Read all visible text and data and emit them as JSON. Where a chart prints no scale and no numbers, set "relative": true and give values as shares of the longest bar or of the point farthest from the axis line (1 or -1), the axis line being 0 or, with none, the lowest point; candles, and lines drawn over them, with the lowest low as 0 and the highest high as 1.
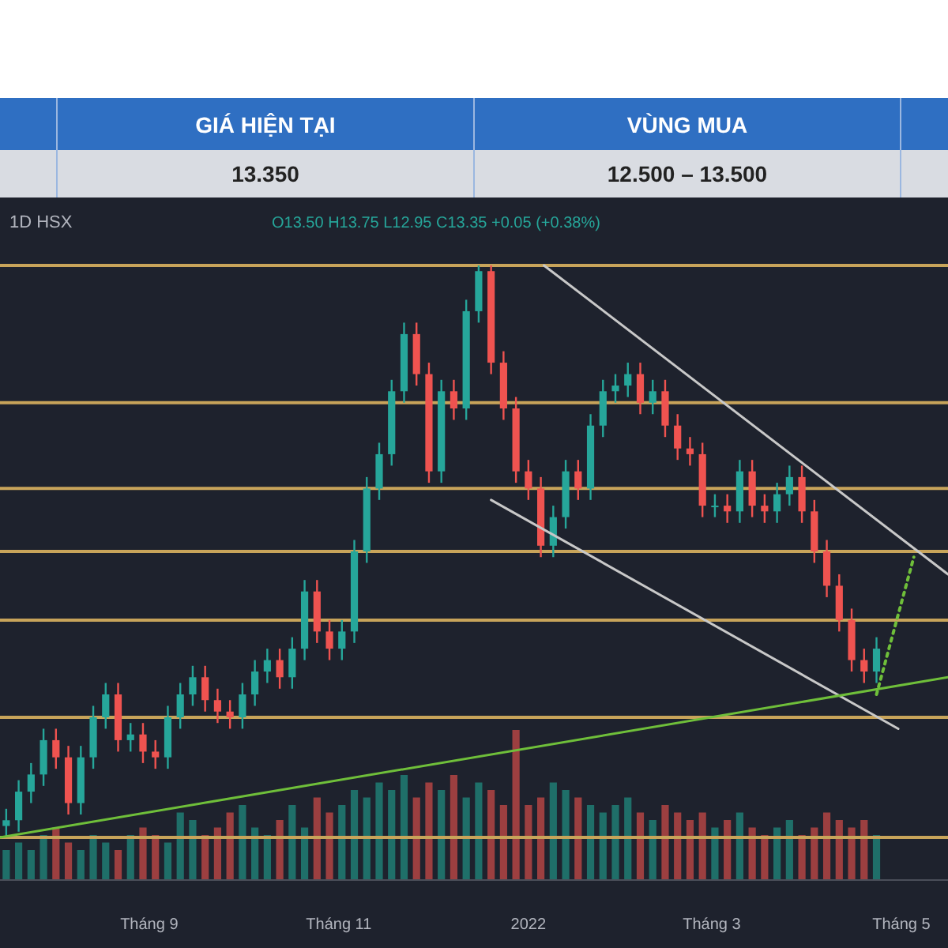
{
  "chart_data": [
    {
      "type": "candlestick",
      "relative": true,
      "tick_labels": "x",
      "annotations": [
        "GIÁ HIỆN TẠI",
        "VÙNG MUA",
        "13.350",
        "12.500 – 13.500",
        "1D HSX",
        "O13.50 H13.75 L12.95 C13.35 +0.05 (+0.38%)"
      ],
      "x": [
        "2021-07-17",
        "2021-07-21",
        "2021-07-25",
        "2021-07-29",
        "2021-08-02",
        "2021-08-06",
        "2021-08-10",
        "2021-08-14",
        "2021-08-18",
        "2021-08-22",
        "2021-08-26",
        "2021-08-30",
        "2021-09-03",
        "2021-09-07",
        "2021-09-11",
        "2021-09-15",
        "2021-09-19",
        "2021-09-23",
        "2021-09-27",
        "2021-10-01",
        "2021-10-05",
        "2021-10-09",
        "2021-10-13",
        "2021-10-17",
        "2021-10-21",
        "2021-10-25",
        "2021-10-29",
        "2021-11-02",
        "2021-11-06",
        "2021-11-10",
        "2021-11-14",
        "2021-11-18",
        "2021-11-22",
        "2021-11-26",
        "2021-11-30",
        "2021-12-04",
        "2021-12-08",
        "2021-12-12",
        "2021-12-16",
        "2021-12-20",
        "2021-12-24",
        "2021-12-28",
        "2022-01-01",
        "2022-01-05",
        "2022-01-09",
        "2022-01-13",
        "2022-01-17",
        "2022-01-21",
        "2022-01-25",
        "2022-01-29",
        "2022-02-02",
        "2022-02-06",
        "2022-02-10",
        "2022-02-14",
        "2022-02-18",
        "2022-02-22",
        "2022-02-26",
        "2022-03-02",
        "2022-03-06",
        "2022-03-10",
        "2022-03-14",
        "2022-03-18",
        "2022-03-22",
        "2022-03-26",
        "2022-03-30",
        "2022-04-03",
        "2022-04-07",
        "2022-04-11",
        "2022-04-15",
        "2022-04-19",
        "2022-04-23"
      ],
      "xlim": [
        "2021-07-15",
        "2022-05-16"
      ],
      "xticks": [
        {
          "value": "2021-09-01",
          "label": "Tháng 9"
        },
        {
          "value": "2021-11-01",
          "label": "Tháng 11"
        },
        {
          "value": "2022-01-01",
          "label": "2022"
        },
        {
          "value": "2022-03-01",
          "label": "Tháng 3"
        },
        {
          "value": "2022-05-01",
          "label": "Tháng 5"
        }
      ],
      "ohlc": [
        [
          0.02,
          0.05,
          0,
          0.03
        ],
        [
          0.03,
          0.1,
          0.01,
          0.08
        ],
        [
          0.08,
          0.13,
          0.06,
          0.11
        ],
        [
          0.11,
          0.19,
          0.09,
          0.17
        ],
        [
          0.17,
          0.19,
          0.12,
          0.14
        ],
        [
          0.14,
          0.16,
          0.04,
          0.06
        ],
        [
          0.06,
          0.16,
          0.04,
          0.14
        ],
        [
          0.14,
          0.23,
          0.12,
          0.21
        ],
        [
          0.21,
          0.27,
          0.19,
          0.25
        ],
        [
          0.25,
          0.27,
          0.15,
          0.17
        ],
        [
          0.17,
          0.2,
          0.15,
          0.18
        ],
        [
          0.18,
          0.2,
          0.13,
          0.15
        ],
        [
          0.15,
          0.17,
          0.12,
          0.14
        ],
        [
          0.14,
          0.23,
          0.12,
          0.21
        ],
        [
          0.21,
          0.27,
          0.19,
          0.25
        ],
        [
          0.25,
          0.3,
          0.23,
          0.28
        ],
        [
          0.28,
          0.3,
          0.22,
          0.24
        ],
        [
          0.24,
          0.26,
          0.2,
          0.22
        ],
        [
          0.22,
          0.24,
          0.19,
          0.21
        ],
        [
          0.21,
          0.27,
          0.19,
          0.25
        ],
        [
          0.25,
          0.31,
          0.23,
          0.29
        ],
        [
          0.29,
          0.33,
          0.27,
          0.31
        ],
        [
          0.31,
          0.33,
          0.26,
          0.28
        ],
        [
          0.28,
          0.35,
          0.26,
          0.33
        ],
        [
          0.33,
          0.45,
          0.31,
          0.43
        ],
        [
          0.43,
          0.45,
          0.34,
          0.36
        ],
        [
          0.36,
          0.38,
          0.31,
          0.33
        ],
        [
          0.33,
          0.38,
          0.31,
          0.36
        ],
        [
          0.36,
          0.52,
          0.34,
          0.5
        ],
        [
          0.5,
          0.63,
          0.48,
          0.61
        ],
        [
          0.61,
          0.69,
          0.59,
          0.67
        ],
        [
          0.67,
          0.8,
          0.65,
          0.78
        ],
        [
          0.78,
          0.9,
          0.76,
          0.88
        ],
        [
          0.88,
          0.9,
          0.79,
          0.81
        ],
        [
          0.81,
          0.83,
          0.62,
          0.64
        ],
        [
          0.64,
          0.8,
          0.62,
          0.78
        ],
        [
          0.78,
          0.8,
          0.73,
          0.75
        ],
        [
          0.75,
          0.94,
          0.73,
          0.92
        ],
        [
          0.92,
          1,
          0.9,
          0.99
        ],
        [
          0.99,
          1,
          0.81,
          0.83
        ],
        [
          0.83,
          0.85,
          0.73,
          0.75
        ],
        [
          0.75,
          0.77,
          0.62,
          0.64
        ],
        [
          0.64,
          0.66,
          0.59,
          0.61
        ],
        [
          0.61,
          0.63,
          0.49,
          0.51
        ],
        [
          0.51,
          0.58,
          0.49,
          0.56
        ],
        [
          0.56,
          0.66,
          0.54,
          0.64
        ],
        [
          0.64,
          0.66,
          0.59,
          0.61
        ],
        [
          0.61,
          0.74,
          0.59,
          0.72
        ],
        [
          0.72,
          0.8,
          0.7,
          0.78
        ],
        [
          0.78,
          0.81,
          0.76,
          0.79
        ],
        [
          0.79,
          0.83,
          0.77,
          0.81
        ],
        [
          0.81,
          0.83,
          0.74,
          0.76
        ],
        [
          0.76,
          0.8,
          0.74,
          0.78
        ],
        [
          0.78,
          0.8,
          0.7,
          0.72
        ],
        [
          0.72,
          0.74,
          0.66,
          0.68
        ],
        [
          0.68,
          0.7,
          0.65,
          0.67
        ],
        [
          0.67,
          0.69,
          0.56,
          0.58
        ],
        [
          0.58,
          0.6,
          0.56,
          0.58
        ],
        [
          0.58,
          0.6,
          0.55,
          0.57
        ],
        [
          0.57,
          0.66,
          0.55,
          0.64
        ],
        [
          0.64,
          0.66,
          0.56,
          0.58
        ],
        [
          0.58,
          0.6,
          0.55,
          0.57
        ],
        [
          0.57,
          0.62,
          0.55,
          0.6
        ],
        [
          0.6,
          0.65,
          0.58,
          0.63
        ],
        [
          0.63,
          0.65,
          0.55,
          0.57
        ],
        [
          0.57,
          0.59,
          0.48,
          0.5
        ],
        [
          0.5,
          0.52,
          0.42,
          0.44
        ],
        [
          0.44,
          0.46,
          0.36,
          0.38
        ],
        [
          0.38,
          0.4,
          0.29,
          0.31
        ],
        [
          0.31,
          0.33,
          0.27,
          0.29
        ],
        [
          0.29,
          0.35,
          0.27,
          0.33
        ]
      ],
      "colors": [
        "#26a69a",
        "#26a69a",
        "#26a69a",
        "#26a69a",
        "#ef5350",
        "#ef5350",
        "#26a69a",
        "#26a69a",
        "#26a69a",
        "#ef5350",
        "#26a69a",
        "#ef5350",
        "#ef5350",
        "#26a69a",
        "#26a69a",
        "#26a69a",
        "#ef5350",
        "#ef5350",
        "#ef5350",
        "#26a69a",
        "#26a69a",
        "#26a69a",
        "#ef5350",
        "#26a69a",
        "#26a69a",
        "#ef5350",
        "#ef5350",
        "#26a69a",
        "#26a69a",
        "#26a69a",
        "#26a69a",
        "#26a69a",
        "#26a69a",
        "#ef5350",
        "#ef5350",
        "#26a69a",
        "#ef5350",
        "#26a69a",
        "#26a69a",
        "#ef5350",
        "#ef5350",
        "#ef5350",
        "#ef5350",
        "#ef5350",
        "#26a69a",
        "#26a69a",
        "#ef5350",
        "#26a69a",
        "#26a69a",
        "#26a69a",
        "#26a69a",
        "#ef5350",
        "#26a69a",
        "#ef5350",
        "#ef5350",
        "#ef5350",
        "#ef5350",
        "#26a69a",
        "#ef5350",
        "#26a69a",
        "#ef5350",
        "#ef5350",
        "#26a69a",
        "#26a69a",
        "#ef5350",
        "#ef5350",
        "#ef5350",
        "#ef5350",
        "#ef5350",
        "#ef5350",
        "#26a69a"
      ],
      "ref_lines": [
        {
          "axis": "y",
          "value": 1,
          "color": "#c8a45a"
        },
        {
          "axis": "y",
          "value": 0.76,
          "color": "#c8a45a"
        },
        {
          "axis": "y",
          "value": 0.61,
          "color": "#c8a45a"
        },
        {
          "axis": "y",
          "value": 0.5,
          "color": "#c8a45a"
        },
        {
          "axis": "y",
          "value": 0.38,
          "color": "#c8a45a"
        },
        {
          "axis": "y",
          "value": 0.21,
          "color": "#c8a45a"
        },
        {
          "axis": "y",
          "value": 0,
          "color": "#c8a45a"
        }
      ],
      "series": [
        {
          "type": "line",
          "x": [
            "2022-01-06",
            "2022-05-16"
          ],
          "values": [
            1,
            0.46
          ],
          "color": "#c8c8c8",
          "line_style": "solid"
        },
        {
          "type": "line",
          "x": [
            "2021-12-20",
            "2022-04-30"
          ],
          "values": [
            0.59,
            0.19
          ],
          "color": "#c8c8c8",
          "line_style": "solid"
        },
        {
          "type": "line",
          "x": [
            "2021-07-15",
            "2022-05-16"
          ],
          "values": [
            0,
            0.28
          ],
          "color": "#6fbf3a",
          "line_style": "solid"
        },
        {
          "type": "line",
          "x": [
            "2022-04-23",
            "2022-05-05"
          ],
          "values": [
            0.25,
            0.49
          ],
          "color": "#6fbf3a",
          "line_style": "dotted"
        }
      ]
    },
    {
      "type": "bar",
      "relative": true,
      "tick_labels": false,
      "xlim": [
        "2021-07-15",
        "2022-05-16"
      ],
      "x": [
        "2021-07-17",
        "2021-07-21",
        "2021-07-25",
        "2021-07-29",
        "2021-08-02",
        "2021-08-06",
        "2021-08-10",
        "2021-08-14",
        "2021-08-18",
        "2021-08-22",
        "2021-08-26",
        "2021-08-30",
        "2021-09-03",
        "2021-09-07",
        "2021-09-11",
        "2021-09-15",
        "2021-09-19",
        "2021-09-23",
        "2021-09-27",
        "2021-10-01",
        "2021-10-05",
        "2021-10-09",
        "2021-10-13",
        "2021-10-17",
        "2021-10-21",
        "2021-10-25",
        "2021-10-29",
        "2021-11-02",
        "2021-11-06",
        "2021-11-10",
        "2021-11-14",
        "2021-11-18",
        "2021-11-22",
        "2021-11-26",
        "2021-11-30",
        "2021-12-04",
        "2021-12-08",
        "2021-12-12",
        "2021-12-16",
        "2021-12-20",
        "2021-12-24",
        "2021-12-28",
        "2022-01-01",
        "2022-01-05",
        "2022-01-09",
        "2022-01-13",
        "2022-01-17",
        "2022-01-21",
        "2022-01-25",
        "2022-01-29",
        "2022-02-02",
        "2022-02-06",
        "2022-02-10",
        "2022-02-14",
        "2022-02-18",
        "2022-02-22",
        "2022-02-26",
        "2022-03-02",
        "2022-03-06",
        "2022-03-10",
        "2022-03-14",
        "2022-03-18",
        "2022-03-22",
        "2022-03-26",
        "2022-03-30",
        "2022-04-03",
        "2022-04-07",
        "2022-04-11",
        "2022-04-15",
        "2022-04-19",
        "2022-04-23"
      ],
      "values": [
        0.2,
        0.25,
        0.2,
        0.3,
        0.35,
        0.25,
        0.2,
        0.3,
        0.25,
        0.2,
        0.3,
        0.35,
        0.3,
        0.25,
        0.45,
        0.4,
        0.3,
        0.35,
        0.45,
        0.5,
        0.35,
        0.3,
        0.4,
        0.5,
        0.35,
        0.55,
        0.45,
        0.5,
        0.6,
        0.55,
        0.65,
        0.6,
        0.7,
        0.55,
        0.65,
        0.6,
        0.7,
        0.55,
        0.65,
        0.6,
        0.5,
        1,
        0.5,
        0.55,
        0.65,
        0.6,
        0.55,
        0.5,
        0.45,
        0.5,
        0.55,
        0.45,
        0.4,
        0.5,
        0.45,
        0.4,
        0.45,
        0.35,
        0.4,
        0.45,
        0.35,
        0.3,
        0.35,
        0.4,
        0.3,
        0.35,
        0.45,
        0.4,
        0.35,
        0.4,
        0.3
      ],
      "colors": [
        "#1f6f69",
        "#1f6f69",
        "#1f6f69",
        "#1f6f69",
        "#9c3f40",
        "#9c3f40",
        "#1f6f69",
        "#1f6f69",
        "#1f6f69",
        "#9c3f40",
        "#1f6f69",
        "#9c3f40",
        "#9c3f40",
        "#1f6f69",
        "#1f6f69",
        "#1f6f69",
        "#9c3f40",
        "#9c3f40",
        "#9c3f40",
        "#1f6f69",
        "#1f6f69",
        "#1f6f69",
        "#9c3f40",
        "#1f6f69",
        "#1f6f69",
        "#9c3f40",
        "#9c3f40",
        "#1f6f69",
        "#1f6f69",
        "#1f6f69",
        "#1f6f69",
        "#1f6f69",
        "#1f6f69",
        "#9c3f40",
        "#9c3f40",
        "#1f6f69",
        "#9c3f40",
        "#1f6f69",
        "#1f6f69",
        "#9c3f40",
        "#9c3f40",
        "#9c3f40",
        "#9c3f40",
        "#9c3f40",
        "#1f6f69",
        "#1f6f69",
        "#9c3f40",
        "#1f6f69",
        "#1f6f69",
        "#1f6f69",
        "#1f6f69",
        "#9c3f40",
        "#1f6f69",
        "#9c3f40",
        "#9c3f40",
        "#9c3f40",
        "#9c3f40",
        "#1f6f69",
        "#9c3f40",
        "#1f6f69",
        "#9c3f40",
        "#9c3f40",
        "#1f6f69",
        "#1f6f69",
        "#9c3f40",
        "#9c3f40",
        "#9c3f40",
        "#9c3f40",
        "#9c3f40",
        "#9c3f40",
        "#1f6f69"
      ]
    }
  ]
}
